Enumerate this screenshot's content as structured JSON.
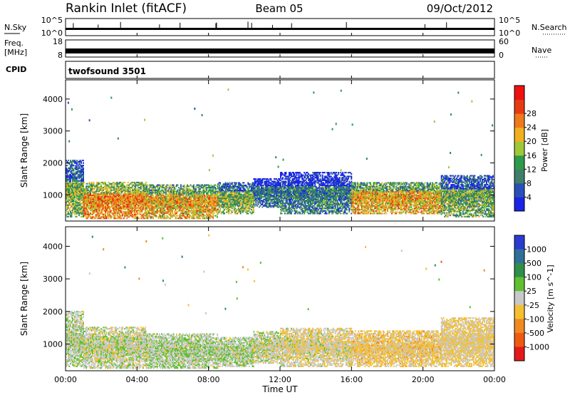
{
  "header": {
    "station": "Rankin Inlet (fitACF)",
    "beam": "Beam 05",
    "date": "09/Oct/2012"
  },
  "strip_labels": {
    "nsky": "N.Sky",
    "nsearch": "N.Search",
    "freq": "Freq.",
    "freq_unit": "[MHz]",
    "nave": "Nave",
    "cpid": "CPID",
    "cpid_value": "twofsound 3501"
  },
  "strip_ticks": {
    "nsky_top": "10^5",
    "nsky_bottom": "10^0",
    "freq_top": "18",
    "freq_bottom": "8",
    "nave_top": "60",
    "nave_bottom": "0"
  },
  "chart_data": [
    {
      "type": "heatmap",
      "name": "power",
      "ylabel": "Slant Range [km]",
      "colorbar_label": "Power [dB]",
      "ylim": [
        180,
        4600
      ],
      "yticks": [
        1000,
        2000,
        3000,
        4000
      ],
      "colorbar_ticks": [
        "4",
        "8",
        "12",
        "16",
        "20",
        "24",
        "28"
      ],
      "colorbar_colors": [
        "#1a24e8",
        "#2a4fb8",
        "#3f7f6a",
        "#2e9a4a",
        "#9ec83a",
        "#f0b020",
        "#f07a1a",
        "#e83a12",
        "#ee1111"
      ],
      "regions": [
        {
          "t0": 0.0,
          "t1": 1.0,
          "r0": 300,
          "r1": 2100,
          "value": 14
        },
        {
          "t0": 1.0,
          "t1": 4.5,
          "r0": 250,
          "r1": 1400,
          "value": 22
        },
        {
          "t0": 4.5,
          "t1": 8.5,
          "r0": 250,
          "r1": 1300,
          "value": 20
        },
        {
          "t0": 8.5,
          "t1": 10.5,
          "r0": 400,
          "r1": 1400,
          "value": 14
        },
        {
          "t0": 10.5,
          "t1": 12.0,
          "r0": 600,
          "r1": 1500,
          "value": 8
        },
        {
          "t0": 12.0,
          "t1": 16.0,
          "r0": 400,
          "r1": 1700,
          "value": 9
        },
        {
          "t0": 16.0,
          "t1": 21.0,
          "r0": 400,
          "r1": 1400,
          "value": 20
        },
        {
          "t0": 21.0,
          "t1": 24.0,
          "r0": 300,
          "r1": 1600,
          "value": 13
        }
      ]
    },
    {
      "type": "heatmap",
      "name": "velocity",
      "ylabel": "Slant Range [km]",
      "colorbar_label": "Velocity [m s^-1]",
      "ylim": [
        180,
        4600
      ],
      "yticks": [
        1000,
        2000,
        3000,
        4000
      ],
      "colorbar_ticks": [
        "1000",
        "500",
        "100",
        "25",
        "-25",
        "-100",
        "-500",
        "-1000"
      ],
      "colorbar_colors": [
        "#2b3bd0",
        "#2f6f9a",
        "#2f8f4a",
        "#5fc030",
        "#c8c8c8",
        "#f5c030",
        "#f08a20",
        "#f05a10",
        "#e41a1a"
      ],
      "regions": [
        {
          "t0": 0.0,
          "t1": 1.0,
          "r0": 300,
          "r1": 2000,
          "value": 60
        },
        {
          "t0": 1.0,
          "t1": 4.5,
          "r0": 250,
          "r1": 1500,
          "value": 10
        },
        {
          "t0": 4.5,
          "t1": 8.5,
          "r0": 250,
          "r1": 1300,
          "value": 80
        },
        {
          "t0": 8.5,
          "t1": 10.5,
          "r0": 300,
          "r1": 1200,
          "value": 70
        },
        {
          "t0": 10.5,
          "t1": 12.0,
          "r0": 400,
          "r1": 1400,
          "value": 5
        },
        {
          "t0": 12.0,
          "t1": 16.0,
          "r0": 300,
          "r1": 1500,
          "value": -80
        },
        {
          "t0": 16.0,
          "t1": 21.0,
          "r0": 300,
          "r1": 1400,
          "value": -200
        },
        {
          "t0": 21.0,
          "t1": 24.0,
          "r0": 300,
          "r1": 1800,
          "value": -150
        }
      ]
    }
  ],
  "xaxis": {
    "label": "Time UT",
    "xlim": [
      0,
      24
    ],
    "ticks": [
      {
        "hour": 0,
        "label": "00:00"
      },
      {
        "hour": 4,
        "label": "04:00"
      },
      {
        "hour": 8,
        "label": "08:00"
      },
      {
        "hour": 12,
        "label": "12:00"
      },
      {
        "hour": 16,
        "label": "16:00"
      },
      {
        "hour": 20,
        "label": "20:00"
      },
      {
        "hour": 24,
        "label": "00:00"
      }
    ]
  }
}
